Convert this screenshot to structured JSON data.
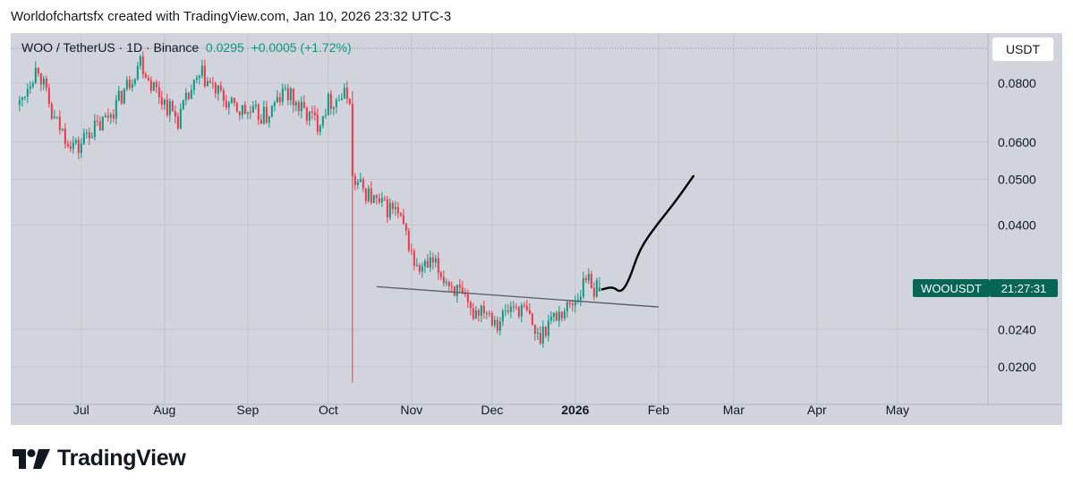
{
  "header": {
    "text": "Worldofchartsfx created with TradingView.com, Jan 10, 2026 23:32 UTC-3"
  },
  "legend": {
    "symbol": "WOO / TetherUS · 1D · Binance",
    "price": "0.0295",
    "change": "+0.0005 (+1.72%)"
  },
  "currency_button": {
    "label": "USDT"
  },
  "price_tag": {
    "symbol": "WOOUSDT",
    "countdown": "21:27:31"
  },
  "footer": {
    "brand": "TradingView"
  },
  "colors": {
    "up": "#089981",
    "down": "#f23645",
    "background": "#d1d4dc",
    "grid": "#c3c6ce",
    "text": "#131722",
    "tag": "#056656"
  },
  "chart_data": {
    "type": "candlestick",
    "scale": "log",
    "y_ticks": [
      "0.0800",
      "0.0600",
      "0.0500",
      "0.0400",
      "0.0240",
      "0.0200"
    ],
    "x_ticks": [
      {
        "label": "Jul",
        "date": "2025-07-01"
      },
      {
        "label": "Aug",
        "date": "2025-08-01"
      },
      {
        "label": "Sep",
        "date": "2025-09-01"
      },
      {
        "label": "Oct",
        "date": "2025-10-01"
      },
      {
        "label": "Nov",
        "date": "2025-11-01"
      },
      {
        "label": "Dec",
        "date": "2025-12-01"
      },
      {
        "label": "2026",
        "date": "2026-01-01",
        "bold": true
      },
      {
        "label": "Feb",
        "date": "2026-02-01"
      },
      {
        "label": "Mar",
        "date": "2026-03-01"
      },
      {
        "label": "Apr",
        "date": "2026-04-01"
      },
      {
        "label": "May",
        "date": "2026-05-01"
      }
    ],
    "last_price": 0.0295,
    "price_path": [
      [
        "2025-06-08",
        0.072
      ],
      [
        "2025-06-12",
        0.082
      ],
      [
        "2025-06-15",
        0.087
      ],
      [
        "2025-06-20",
        0.068
      ],
      [
        "2025-06-25",
        0.062
      ],
      [
        "2025-06-30",
        0.058
      ],
      [
        "2025-07-03",
        0.063
      ],
      [
        "2025-07-08",
        0.065
      ],
      [
        "2025-07-14",
        0.072
      ],
      [
        "2025-07-20",
        0.083
      ],
      [
        "2025-07-23",
        0.09
      ],
      [
        "2025-07-26",
        0.082
      ],
      [
        "2025-08-01",
        0.073
      ],
      [
        "2025-08-06",
        0.067
      ],
      [
        "2025-08-11",
        0.077
      ],
      [
        "2025-08-15",
        0.083
      ],
      [
        "2025-08-20",
        0.077
      ],
      [
        "2025-08-26",
        0.071
      ],
      [
        "2025-09-02",
        0.069
      ],
      [
        "2025-09-08",
        0.068
      ],
      [
        "2025-09-15",
        0.077
      ],
      [
        "2025-09-20",
        0.071
      ],
      [
        "2025-09-27",
        0.066
      ],
      [
        "2025-10-01",
        0.073
      ],
      [
        "2025-10-06",
        0.075
      ],
      [
        "2025-10-09",
        0.075
      ],
      [
        "2025-10-10",
        0.05
      ],
      [
        "2025-10-15",
        0.047
      ],
      [
        "2025-10-20",
        0.044
      ],
      [
        "2025-10-26",
        0.043
      ],
      [
        "2025-10-30",
        0.038
      ],
      [
        "2025-11-03",
        0.032
      ],
      [
        "2025-11-09",
        0.033
      ],
      [
        "2025-11-13",
        0.031
      ],
      [
        "2025-11-18",
        0.029
      ],
      [
        "2025-11-23",
        0.026
      ],
      [
        "2025-11-28",
        0.027
      ],
      [
        "2025-12-03",
        0.025
      ],
      [
        "2025-12-09",
        0.027
      ],
      [
        "2025-12-14",
        0.026
      ],
      [
        "2025-12-18",
        0.023
      ],
      [
        "2025-12-22",
        0.025
      ],
      [
        "2025-12-26",
        0.026
      ],
      [
        "2025-12-30",
        0.027
      ],
      [
        "2026-01-03",
        0.029
      ],
      [
        "2026-01-06",
        0.032
      ],
      [
        "2026-01-08",
        0.029
      ],
      [
        "2026-01-10",
        0.0295
      ]
    ],
    "crash_wick": {
      "date": "2025-10-10",
      "high": 0.077,
      "low": 0.0185
    },
    "trendline": [
      [
        "2025-10-19",
        0.0296
      ],
      [
        "2026-02-01",
        0.0268
      ]
    ],
    "projection": [
      [
        "2026-01-11",
        0.0292
      ],
      [
        "2026-01-15",
        0.0296
      ],
      [
        "2026-01-18",
        0.0287
      ],
      [
        "2026-01-21",
        0.0305
      ],
      [
        "2026-01-25",
        0.0356
      ],
      [
        "2026-01-31",
        0.0398
      ],
      [
        "2026-02-07",
        0.0446
      ],
      [
        "2026-02-14",
        0.0508
      ]
    ]
  }
}
